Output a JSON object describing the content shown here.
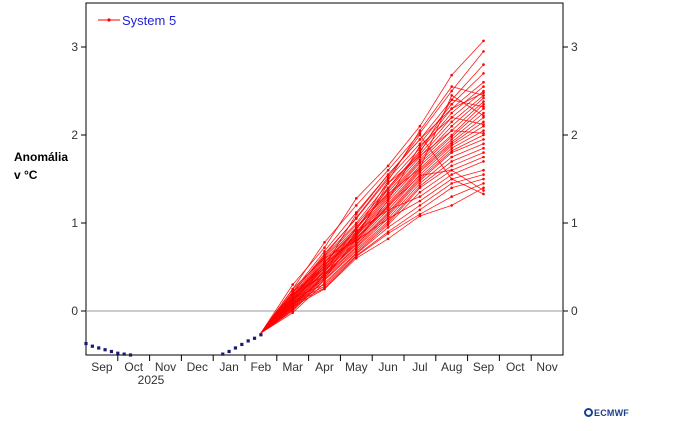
{
  "chart_data": {
    "type": "line",
    "ylabel_line1": "Anomália",
    "ylabel_line2": "v °C",
    "legend": "System 5",
    "year_label": "2025",
    "logo_text": "ECMWF",
    "months": [
      "Sep",
      "Oct",
      "Nov",
      "Dec",
      "Jan",
      "Feb",
      "Mar",
      "Apr",
      "May",
      "Jun",
      "Jul",
      "Aug",
      "Sep",
      "Oct",
      "Nov"
    ],
    "yticks": [
      0,
      1,
      2,
      3
    ],
    "ylim": [
      -0.5,
      3.5
    ],
    "xlim": [
      -0.5,
      14.5
    ],
    "grid": false,
    "zero_line": true,
    "legend_position": "top-left",
    "colors": {
      "ensemble": "#ff0000",
      "observed": "#1a1a6e",
      "zero_line": "#999999",
      "legend_text": "#1f1fd6"
    },
    "observed": {
      "x": [
        -0.5,
        -0.3,
        -0.1,
        0.1,
        0.3,
        0.5,
        0.7,
        0.9,
        1.0,
        3.6,
        3.8,
        4.0,
        4.2,
        4.4,
        4.6,
        4.8,
        5.0
      ],
      "y": [
        -0.37,
        -0.4,
        -0.42,
        -0.44,
        -0.46,
        -0.48,
        -0.49,
        -0.5,
        -0.51,
        -0.53,
        -0.49,
        -0.46,
        -0.42,
        -0.38,
        -0.34,
        -0.31,
        -0.27
      ]
    },
    "ensemble_x": [
      5,
      6,
      7,
      8,
      9,
      10,
      11,
      12
    ],
    "ensemble": [
      [
        -0.25,
        0.3,
        0.72,
        1.28,
        1.65,
        2.1,
        2.68,
        3.07
      ],
      [
        -0.25,
        0.25,
        0.78,
        1.2,
        1.6,
        2.02,
        2.5,
        2.95
      ],
      [
        -0.25,
        0.22,
        0.68,
        1.12,
        1.55,
        1.95,
        2.4,
        2.8
      ],
      [
        -0.25,
        0.2,
        0.65,
        1.05,
        1.5,
        1.9,
        2.35,
        2.7
      ],
      [
        -0.25,
        0.18,
        0.62,
        1.0,
        1.45,
        1.85,
        2.3,
        2.6
      ],
      [
        -0.25,
        0.16,
        0.6,
        0.98,
        1.4,
        1.82,
        2.25,
        2.55
      ],
      [
        -0.25,
        0.15,
        0.58,
        0.95,
        1.38,
        1.78,
        2.2,
        2.5
      ],
      [
        -0.25,
        0.14,
        0.56,
        0.93,
        1.35,
        1.75,
        2.15,
        2.45
      ],
      [
        -0.25,
        0.13,
        0.55,
        0.9,
        1.32,
        1.72,
        2.1,
        2.42
      ],
      [
        -0.25,
        0.12,
        0.53,
        0.88,
        1.3,
        1.7,
        2.05,
        2.38
      ],
      [
        -0.25,
        0.11,
        0.52,
        0.86,
        1.28,
        1.68,
        2.0,
        2.35
      ],
      [
        -0.25,
        0.1,
        0.5,
        0.85,
        1.25,
        1.65,
        1.98,
        2.3
      ],
      [
        -0.25,
        0.09,
        0.49,
        0.83,
        1.22,
        1.62,
        1.95,
        2.25
      ],
      [
        -0.25,
        0.08,
        0.47,
        0.82,
        1.2,
        1.6,
        1.92,
        2.2
      ],
      [
        -0.25,
        0.07,
        0.46,
        0.8,
        1.18,
        1.58,
        1.9,
        2.15
      ],
      [
        -0.25,
        0.06,
        0.45,
        0.78,
        1.15,
        1.55,
        1.88,
        2.1
      ],
      [
        -0.25,
        0.05,
        0.43,
        0.76,
        1.12,
        1.52,
        1.85,
        2.05
      ],
      [
        -0.25,
        0.04,
        0.42,
        0.75,
        1.1,
        1.5,
        1.82,
        2.0
      ],
      [
        -0.25,
        0.03,
        0.4,
        0.73,
        1.08,
        1.48,
        1.8,
        1.95
      ],
      [
        -0.25,
        0.02,
        0.38,
        0.72,
        1.05,
        1.45,
        1.75,
        1.9
      ],
      [
        -0.25,
        0.01,
        0.36,
        0.7,
        1.02,
        1.42,
        1.7,
        1.85
      ],
      [
        -0.25,
        0.0,
        0.35,
        0.68,
        1.0,
        1.4,
        1.65,
        1.8
      ],
      [
        -0.25,
        -0.02,
        0.32,
        0.66,
        0.98,
        1.35,
        1.6,
        1.75
      ],
      [
        -0.25,
        0.2,
        0.4,
        0.9,
        1.15,
        1.3,
        1.55,
        1.7
      ],
      [
        -0.25,
        0.25,
        0.6,
        0.8,
        1.05,
        1.25,
        1.5,
        1.6
      ],
      [
        -0.25,
        0.15,
        0.3,
        0.65,
        0.95,
        1.2,
        1.45,
        1.55
      ],
      [
        -0.25,
        0.1,
        0.28,
        0.63,
        0.9,
        1.15,
        1.4,
        1.5
      ],
      [
        -0.25,
        0.08,
        0.26,
        0.62,
        0.88,
        1.1,
        1.3,
        1.45
      ],
      [
        -0.25,
        0.05,
        0.25,
        0.6,
        0.82,
        1.08,
        1.2,
        1.4
      ],
      [
        -0.25,
        0.12,
        0.5,
        1.1,
        1.55,
        1.95,
        2.3,
        2.48
      ],
      [
        -0.25,
        0.18,
        0.55,
        0.92,
        1.48,
        2.05,
        2.55,
        2.45
      ],
      [
        -0.25,
        0.22,
        0.48,
        0.87,
        1.4,
        1.8,
        2.4,
        2.32
      ],
      [
        -0.25,
        0.14,
        0.44,
        0.95,
        1.33,
        1.62,
        2.45,
        2.22
      ],
      [
        -0.25,
        0.06,
        0.4,
        0.78,
        1.26,
        1.88,
        2.2,
        2.12
      ],
      [
        -0.25,
        0.17,
        0.52,
        0.84,
        1.45,
        1.76,
        2.05,
        2.02
      ],
      [
        -0.25,
        0.09,
        0.37,
        0.82,
        1.19,
        1.54,
        1.6,
        1.37
      ],
      [
        -0.25,
        0.21,
        0.63,
        1.06,
        1.52,
        2.0,
        1.5,
        1.33
      ]
    ]
  }
}
